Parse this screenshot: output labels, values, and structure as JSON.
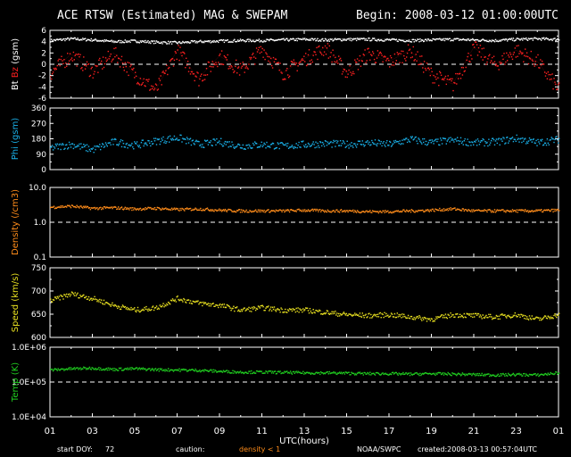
{
  "header": {
    "title": "ACE RTSW (Estimated) MAG & SWEPAM",
    "begin": "Begin: 2008-03-12 01:00:00UTC"
  },
  "footer": {
    "start_doy_label": "start DOY:",
    "start_doy": "72",
    "caution_label": "caution:",
    "caution_text": "density < 1",
    "source": "NOAA/SWPC",
    "created": "created:2008-03-13 00:57:04UTC"
  },
  "colors": {
    "background": "#000000",
    "axis": "#ffffff",
    "bt": "#ffffff",
    "bz": "#ff2020",
    "phi": "#1ab0e8",
    "density": "#ff8c1a",
    "speed": "#e8e020",
    "temp": "#20d020"
  },
  "chart_data": [
    {
      "type": "scatter",
      "ylabel_parts": [
        "Bt",
        "Bz",
        "(gsm)"
      ],
      "ylim": [
        -6,
        6
      ],
      "yticks": [
        "6",
        "4",
        "2",
        "0",
        "-2",
        "-4",
        "-6"
      ],
      "reference_line": 0,
      "series": [
        {
          "name": "Bt",
          "x": [
            0,
            1,
            2,
            3,
            4,
            5,
            6,
            7,
            8,
            9,
            10,
            11,
            12,
            13,
            14,
            15,
            16,
            17,
            18,
            19,
            20,
            21,
            22,
            23,
            24
          ],
          "values": [
            4.3,
            4.6,
            4.4,
            4.1,
            4.2,
            4.0,
            3.9,
            4.1,
            4.2,
            4.3,
            4.3,
            4.4,
            4.5,
            4.4,
            4.5,
            4.5,
            4.4,
            4.3,
            4.4,
            4.5,
            4.4,
            4.3,
            4.5,
            4.6,
            4.5
          ]
        },
        {
          "name": "Bz",
          "x": [
            0,
            1,
            2,
            3,
            4,
            5,
            6,
            7,
            8,
            9,
            10,
            11,
            12,
            13,
            14,
            15,
            16,
            17,
            18,
            19,
            20,
            21,
            22,
            23,
            24
          ],
          "values": [
            -1.5,
            1.8,
            -1.2,
            2.0,
            -1.8,
            -4.5,
            2.5,
            -2.5,
            1.5,
            -1.0,
            2.8,
            -1.5,
            1.0,
            3.0,
            -1.5,
            2.0,
            0.5,
            2.5,
            -1.8,
            -3.5,
            3.0,
            0.0,
            2.5,
            0.5,
            -4.5
          ]
        }
      ]
    },
    {
      "type": "scatter",
      "ylabel_parts": [
        "Phi (gsm)"
      ],
      "ylim": [
        0,
        360
      ],
      "yticks": [
        "360",
        "270",
        "180",
        "90",
        "0"
      ],
      "series": [
        {
          "name": "Phi",
          "x": [
            0,
            1,
            2,
            3,
            4,
            5,
            6,
            7,
            8,
            9,
            10,
            11,
            12,
            13,
            14,
            15,
            16,
            17,
            18,
            19,
            20,
            21,
            22,
            23,
            24
          ],
          "values": [
            130,
            150,
            120,
            165,
            145,
            170,
            190,
            150,
            165,
            140,
            150,
            140,
            150,
            155,
            150,
            160,
            150,
            180,
            160,
            175,
            160,
            165,
            185,
            160,
            180
          ]
        }
      ]
    },
    {
      "type": "scatter",
      "ylabel_parts": [
        "Density (/cm3)"
      ],
      "yscale": "log",
      "ylim": [
        0.1,
        10.0
      ],
      "yticks": [
        "10.0",
        "1.0",
        "0.1"
      ],
      "reference_line": 1.0,
      "series": [
        {
          "name": "Density",
          "x": [
            0,
            1,
            2,
            3,
            4,
            5,
            6,
            7,
            8,
            9,
            10,
            11,
            12,
            13,
            14,
            15,
            16,
            17,
            18,
            19,
            20,
            21,
            22,
            23,
            24
          ],
          "values": [
            2.8,
            3.0,
            2.6,
            2.7,
            2.5,
            2.6,
            2.4,
            2.5,
            2.3,
            2.2,
            2.2,
            2.2,
            2.3,
            2.2,
            2.2,
            2.1,
            2.1,
            2.2,
            2.3,
            2.5,
            2.2,
            2.2,
            2.2,
            2.2,
            2.3
          ]
        }
      ]
    },
    {
      "type": "scatter",
      "ylabel_parts": [
        "Speed (km/s)"
      ],
      "ylim": [
        600,
        750
      ],
      "yticks": [
        "750",
        "700",
        "650",
        "600"
      ],
      "series": [
        {
          "name": "Speed",
          "x": [
            0,
            1,
            2,
            3,
            4,
            5,
            6,
            7,
            8,
            9,
            10,
            11,
            12,
            13,
            14,
            15,
            16,
            17,
            18,
            19,
            20,
            21,
            22,
            23,
            24
          ],
          "values": [
            680,
            695,
            685,
            670,
            660,
            665,
            685,
            675,
            670,
            660,
            665,
            660,
            660,
            655,
            650,
            648,
            650,
            645,
            640,
            650,
            648,
            645,
            650,
            640,
            650
          ]
        }
      ]
    },
    {
      "type": "scatter",
      "ylabel_parts": [
        "Temp (K)"
      ],
      "yscale": "log",
      "ylim": [
        10000,
        1000000
      ],
      "yticks": [
        "1.0E+06",
        "1.0E+05",
        "1.0E+04"
      ],
      "reference_line": 100000,
      "series": [
        {
          "name": "Temp",
          "x": [
            0,
            1,
            2,
            3,
            4,
            5,
            6,
            7,
            8,
            9,
            10,
            11,
            12,
            13,
            14,
            15,
            16,
            17,
            18,
            19,
            20,
            21,
            22,
            23,
            24
          ],
          "values": [
            230000,
            250000,
            260000,
            240000,
            250000,
            235000,
            230000,
            225000,
            210000,
            200000,
            200000,
            195000,
            190000,
            190000,
            185000,
            180000,
            180000,
            175000,
            180000,
            175000,
            170000,
            165000,
            170000,
            165000,
            190000
          ]
        }
      ]
    }
  ],
  "x_axis": {
    "label": "UTC(hours)",
    "tick_labels": [
      "01",
      "03",
      "05",
      "07",
      "09",
      "11",
      "13",
      "15",
      "17",
      "19",
      "21",
      "23",
      "01"
    ]
  }
}
